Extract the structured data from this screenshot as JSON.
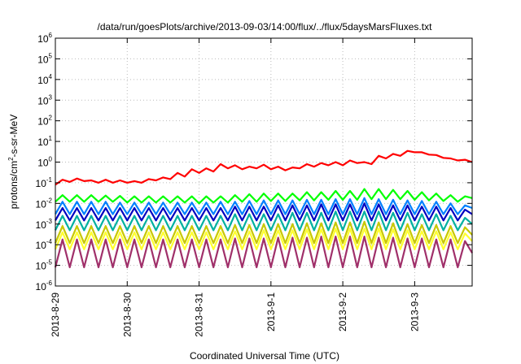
{
  "chart_data": {
    "type": "line",
    "title": "/data/run/goesPlots/archive/2013-09-03/14:00/flux/../flux/5daysMarsFluxes.txt",
    "xlabel": "Coordinated Universal Time (UTC)",
    "ylabel": {
      "main": "protons/cm",
      "sup": "2",
      "rest": "-s-sr-MeV"
    },
    "yscale": "log",
    "ylim": [
      1e-06,
      1000000.0
    ],
    "xlim": [
      0,
      5.8
    ],
    "grid": true,
    "x_ticks": [
      {
        "x": 0,
        "label": "2013-8-29"
      },
      {
        "x": 1,
        "label": "2013-8-30"
      },
      {
        "x": 2,
        "label": "2013-8-31"
      },
      {
        "x": 3,
        "label": "2013-9-1"
      },
      {
        "x": 4,
        "label": "2013-9-2"
      },
      {
        "x": 5,
        "label": "2013-9-3"
      }
    ],
    "y_ticks": [
      {
        "exp": -6,
        "label": "10",
        "sup": "-6"
      },
      {
        "exp": -5,
        "label": "10",
        "sup": "-5"
      },
      {
        "exp": -4,
        "label": "10",
        "sup": "-4"
      },
      {
        "exp": -3,
        "label": "10",
        "sup": "-3"
      },
      {
        "exp": -2,
        "label": "10",
        "sup": "-2"
      },
      {
        "exp": -1,
        "label": "10",
        "sup": "-1"
      },
      {
        "exp": 0,
        "label": "10",
        "sup": "0"
      },
      {
        "exp": 1,
        "label": "10",
        "sup": "1"
      },
      {
        "exp": 2,
        "label": "10",
        "sup": "2"
      },
      {
        "exp": 3,
        "label": "10",
        "sup": "3"
      },
      {
        "exp": 4,
        "label": "10",
        "sup": "4"
      },
      {
        "exp": 5,
        "label": "10",
        "sup": "5"
      },
      {
        "exp": 6,
        "label": "10",
        "sup": "6"
      }
    ],
    "series": [
      {
        "color": "#ff0000",
        "x": [
          0,
          0.1,
          0.2,
          0.3,
          0.4,
          0.5,
          0.6,
          0.7,
          0.8,
          0.9,
          1.0,
          1.1,
          1.2,
          1.3,
          1.4,
          1.5,
          1.6,
          1.7,
          1.8,
          1.9,
          2.0,
          2.1,
          2.2,
          2.3,
          2.4,
          2.5,
          2.6,
          2.7,
          2.8,
          2.9,
          3.0,
          3.1,
          3.2,
          3.3,
          3.4,
          3.5,
          3.6,
          3.7,
          3.8,
          3.9,
          4.0,
          4.1,
          4.2,
          4.3,
          4.4,
          4.5,
          4.6,
          4.7,
          4.8,
          4.9,
          5.0,
          5.1,
          5.2,
          5.3,
          5.4,
          5.5,
          5.6,
          5.7,
          5.8
        ],
        "y": [
          0.08,
          0.14,
          0.11,
          0.16,
          0.12,
          0.13,
          0.1,
          0.14,
          0.1,
          0.13,
          0.1,
          0.12,
          0.1,
          0.15,
          0.13,
          0.18,
          0.15,
          0.3,
          0.2,
          0.45,
          0.3,
          0.5,
          0.35,
          0.8,
          0.5,
          0.7,
          0.45,
          0.6,
          0.5,
          0.75,
          0.45,
          0.6,
          0.4,
          0.55,
          0.5,
          0.8,
          0.6,
          0.9,
          0.7,
          1.0,
          0.7,
          1.2,
          0.9,
          1.0,
          0.8,
          2.0,
          1.5,
          2.5,
          2.0,
          3.5,
          3.0,
          3.0,
          2.3,
          2.2,
          1.6,
          1.5,
          1.2,
          1.3,
          1.0
        ]
      },
      {
        "color": "#00ff00",
        "x": [
          0,
          0.1,
          0.2,
          0.3,
          0.4,
          0.5,
          0.6,
          0.7,
          0.8,
          0.9,
          1.0,
          1.1,
          1.2,
          1.3,
          1.4,
          1.5,
          1.6,
          1.7,
          1.8,
          1.9,
          2.0,
          2.1,
          2.2,
          2.3,
          2.4,
          2.5,
          2.6,
          2.7,
          2.8,
          2.9,
          3.0,
          3.1,
          3.2,
          3.3,
          3.4,
          3.5,
          3.6,
          3.7,
          3.8,
          3.9,
          4.0,
          4.1,
          4.2,
          4.3,
          4.4,
          4.5,
          4.6,
          4.7,
          4.8,
          4.9,
          5.0,
          5.1,
          5.2,
          5.3,
          5.4,
          5.5,
          5.6,
          5.7,
          5.8
        ],
        "y": [
          0.012,
          0.025,
          0.012,
          0.025,
          0.012,
          0.025,
          0.012,
          0.024,
          0.012,
          0.023,
          0.011,
          0.022,
          0.011,
          0.022,
          0.011,
          0.022,
          0.011,
          0.022,
          0.011,
          0.022,
          0.01,
          0.022,
          0.011,
          0.022,
          0.011,
          0.025,
          0.012,
          0.028,
          0.012,
          0.03,
          0.013,
          0.03,
          0.013,
          0.03,
          0.014,
          0.035,
          0.014,
          0.035,
          0.015,
          0.04,
          0.015,
          0.04,
          0.015,
          0.05,
          0.016,
          0.05,
          0.016,
          0.045,
          0.016,
          0.04,
          0.015,
          0.035,
          0.014,
          0.03,
          0.013,
          0.025,
          0.012,
          0.022,
          0.018
        ]
      },
      {
        "color": "#0080ff",
        "x": [
          0,
          0.1,
          0.2,
          0.3,
          0.4,
          0.5,
          0.6,
          0.7,
          0.8,
          0.9,
          1.0,
          1.1,
          1.2,
          1.3,
          1.4,
          1.5,
          1.6,
          1.7,
          1.8,
          1.9,
          2.0,
          2.1,
          2.2,
          2.3,
          2.4,
          2.5,
          2.6,
          2.7,
          2.8,
          2.9,
          3.0,
          3.1,
          3.2,
          3.3,
          3.4,
          3.5,
          3.6,
          3.7,
          3.8,
          3.9,
          4.0,
          4.1,
          4.2,
          4.3,
          4.4,
          4.5,
          4.6,
          4.7,
          4.8,
          4.9,
          5.0,
          5.1,
          5.2,
          5.3,
          5.4,
          5.5,
          5.6,
          5.7,
          5.8
        ],
        "y": [
          0.003,
          0.012,
          0.003,
          0.012,
          0.003,
          0.012,
          0.003,
          0.012,
          0.003,
          0.011,
          0.003,
          0.011,
          0.003,
          0.011,
          0.003,
          0.011,
          0.003,
          0.011,
          0.003,
          0.011,
          0.003,
          0.011,
          0.003,
          0.012,
          0.003,
          0.012,
          0.003,
          0.013,
          0.003,
          0.014,
          0.003,
          0.014,
          0.003,
          0.014,
          0.003,
          0.015,
          0.003,
          0.015,
          0.003,
          0.016,
          0.003,
          0.016,
          0.003,
          0.018,
          0.003,
          0.016,
          0.003,
          0.015,
          0.003,
          0.014,
          0.003,
          0.013,
          0.003,
          0.012,
          0.003,
          0.01,
          0.003,
          0.008,
          0.006
        ]
      },
      {
        "color": "#0000c0",
        "x": [
          0,
          0.1,
          0.2,
          0.3,
          0.4,
          0.5,
          0.6,
          0.7,
          0.8,
          0.9,
          1.0,
          1.1,
          1.2,
          1.3,
          1.4,
          1.5,
          1.6,
          1.7,
          1.8,
          1.9,
          2.0,
          2.1,
          2.2,
          2.3,
          2.4,
          2.5,
          2.6,
          2.7,
          2.8,
          2.9,
          3.0,
          3.1,
          3.2,
          3.3,
          3.4,
          3.5,
          3.6,
          3.7,
          3.8,
          3.9,
          4.0,
          4.1,
          4.2,
          4.3,
          4.4,
          4.5,
          4.6,
          4.7,
          4.8,
          4.9,
          5.0,
          5.1,
          5.2,
          5.3,
          5.4,
          5.5,
          5.6,
          5.7,
          5.8
        ],
        "y": [
          0.0015,
          0.006,
          0.0015,
          0.006,
          0.0015,
          0.006,
          0.0015,
          0.006,
          0.0015,
          0.006,
          0.0015,
          0.006,
          0.0015,
          0.006,
          0.0015,
          0.006,
          0.0015,
          0.006,
          0.0015,
          0.006,
          0.0015,
          0.006,
          0.0015,
          0.006,
          0.0015,
          0.007,
          0.0015,
          0.007,
          0.0015,
          0.007,
          0.0015,
          0.008,
          0.0015,
          0.008,
          0.0015,
          0.008,
          0.0015,
          0.009,
          0.0015,
          0.009,
          0.0015,
          0.009,
          0.0015,
          0.01,
          0.0015,
          0.009,
          0.0015,
          0.008,
          0.0015,
          0.008,
          0.0015,
          0.007,
          0.0015,
          0.007,
          0.0015,
          0.006,
          0.0015,
          0.005,
          0.003
        ]
      },
      {
        "color": "#00b0a0",
        "x": [
          0,
          0.1,
          0.2,
          0.3,
          0.4,
          0.5,
          0.6,
          0.7,
          0.8,
          0.9,
          1.0,
          1.1,
          1.2,
          1.3,
          1.4,
          1.5,
          1.6,
          1.7,
          1.8,
          1.9,
          2.0,
          2.1,
          2.2,
          2.3,
          2.4,
          2.5,
          2.6,
          2.7,
          2.8,
          2.9,
          3.0,
          3.1,
          3.2,
          3.3,
          3.4,
          3.5,
          3.6,
          3.7,
          3.8,
          3.9,
          4.0,
          4.1,
          4.2,
          4.3,
          4.4,
          4.5,
          4.6,
          4.7,
          4.8,
          4.9,
          5.0,
          5.1,
          5.2,
          5.3,
          5.4,
          5.5,
          5.6,
          5.7,
          5.8
        ],
        "y": [
          0.0005,
          0.0025,
          0.0005,
          0.0025,
          0.0005,
          0.0025,
          0.0005,
          0.0025,
          0.0005,
          0.0025,
          0.0005,
          0.0025,
          0.0005,
          0.0025,
          0.0005,
          0.0025,
          0.0005,
          0.0025,
          0.0005,
          0.0025,
          0.0005,
          0.0025,
          0.0005,
          0.0025,
          0.0005,
          0.003,
          0.0005,
          0.003,
          0.0005,
          0.003,
          0.0005,
          0.003,
          0.0005,
          0.0035,
          0.0005,
          0.0035,
          0.0005,
          0.0035,
          0.0005,
          0.004,
          0.0005,
          0.004,
          0.0005,
          0.004,
          0.0005,
          0.004,
          0.0005,
          0.0035,
          0.0005,
          0.0035,
          0.0005,
          0.003,
          0.0005,
          0.003,
          0.0005,
          0.0025,
          0.0005,
          0.002,
          0.001
        ]
      },
      {
        "color": "#c8c800",
        "x": [
          0,
          0.1,
          0.2,
          0.3,
          0.4,
          0.5,
          0.6,
          0.7,
          0.8,
          0.9,
          1.0,
          1.1,
          1.2,
          1.3,
          1.4,
          1.5,
          1.6,
          1.7,
          1.8,
          1.9,
          2.0,
          2.1,
          2.2,
          2.3,
          2.4,
          2.5,
          2.6,
          2.7,
          2.8,
          2.9,
          3.0,
          3.1,
          3.2,
          3.3,
          3.4,
          3.5,
          3.6,
          3.7,
          3.8,
          3.9,
          4.0,
          4.1,
          4.2,
          4.3,
          4.4,
          4.5,
          4.6,
          4.7,
          4.8,
          4.9,
          5.0,
          5.1,
          5.2,
          5.3,
          5.4,
          5.5,
          5.6,
          5.7,
          5.8
        ],
        "y": [
          0.00012,
          0.0008,
          0.00012,
          0.0008,
          0.00012,
          0.0008,
          0.00012,
          0.0008,
          0.00012,
          0.0008,
          0.00012,
          0.0008,
          0.00012,
          0.0008,
          0.00012,
          0.0008,
          0.00012,
          0.0008,
          0.00012,
          0.0008,
          0.00012,
          0.0008,
          0.00012,
          0.0008,
          0.00012,
          0.0009,
          0.00012,
          0.0009,
          0.00012,
          0.001,
          0.00012,
          0.001,
          0.00012,
          0.001,
          0.00012,
          0.0011,
          0.00012,
          0.0011,
          0.00012,
          0.0012,
          0.00012,
          0.0012,
          0.00012,
          0.0013,
          0.00012,
          0.0012,
          0.00012,
          0.0011,
          0.00012,
          0.001,
          0.00012,
          0.0009,
          0.00012,
          0.0009,
          0.00012,
          0.0008,
          0.00012,
          0.0007,
          0.0003
        ]
      },
      {
        "color": "#ffff30",
        "x": [
          0,
          0.1,
          0.2,
          0.3,
          0.4,
          0.5,
          0.6,
          0.7,
          0.8,
          0.9,
          1.0,
          1.1,
          1.2,
          1.3,
          1.4,
          1.5,
          1.6,
          1.7,
          1.8,
          1.9,
          2.0,
          2.1,
          2.2,
          2.3,
          2.4,
          2.5,
          2.6,
          2.7,
          2.8,
          2.9,
          3.0,
          3.1,
          3.2,
          3.3,
          3.4,
          3.5,
          3.6,
          3.7,
          3.8,
          3.9,
          4.0,
          4.1,
          4.2,
          4.3,
          4.4,
          4.5,
          4.6,
          4.7,
          4.8,
          4.9,
          5.0,
          5.1,
          5.2,
          5.3,
          5.4,
          5.5,
          5.6,
          5.7,
          5.8
        ],
        "y": [
          6e-05,
          0.0004,
          6e-05,
          0.0004,
          6e-05,
          0.0004,
          6e-05,
          0.0004,
          6e-05,
          0.0004,
          6e-05,
          0.0004,
          6e-05,
          0.0004,
          6e-05,
          0.0004,
          6e-05,
          0.0004,
          6e-05,
          0.0004,
          6e-05,
          0.0004,
          6e-05,
          0.0004,
          6e-05,
          0.00045,
          6e-05,
          0.00045,
          6e-05,
          0.0005,
          6e-05,
          0.0005,
          6e-05,
          0.0005,
          6e-05,
          0.00055,
          6e-05,
          0.00055,
          6e-05,
          0.0006,
          6e-05,
          0.0006,
          6e-05,
          0.0006,
          6e-05,
          0.0006,
          6e-05,
          0.00055,
          6e-05,
          0.0005,
          6e-05,
          0.00045,
          6e-05,
          0.00045,
          6e-05,
          0.0004,
          6e-05,
          0.00035,
          0.00015
        ]
      },
      {
        "color": "#a0306a",
        "x": [
          0,
          0.1,
          0.2,
          0.3,
          0.4,
          0.5,
          0.6,
          0.7,
          0.8,
          0.9,
          1.0,
          1.1,
          1.2,
          1.3,
          1.4,
          1.5,
          1.6,
          1.7,
          1.8,
          1.9,
          2.0,
          2.1,
          2.2,
          2.3,
          2.4,
          2.5,
          2.6,
          2.7,
          2.8,
          2.9,
          3.0,
          3.1,
          3.2,
          3.3,
          3.4,
          3.5,
          3.6,
          3.7,
          3.8,
          3.9,
          4.0,
          4.1,
          4.2,
          4.3,
          4.4,
          4.5,
          4.6,
          4.7,
          4.8,
          4.9,
          5.0,
          5.1,
          5.2,
          5.3,
          5.4,
          5.5,
          5.6,
          5.7,
          5.8
        ],
        "y": [
          8e-06,
          0.00018,
          8e-06,
          0.00018,
          8e-06,
          0.00018,
          8e-06,
          0.00018,
          8e-06,
          0.00018,
          8e-06,
          0.00018,
          8e-06,
          0.00018,
          8e-06,
          0.00018,
          8e-06,
          0.00018,
          8e-06,
          0.00018,
          8e-06,
          0.00018,
          8e-06,
          0.00018,
          8e-06,
          0.0002,
          8e-06,
          0.0002,
          8e-06,
          0.0002,
          8e-06,
          0.00022,
          8e-06,
          0.00022,
          8e-06,
          0.00022,
          8e-06,
          0.00025,
          8e-06,
          0.00025,
          8e-06,
          0.00025,
          8e-06,
          0.00025,
          8e-06,
          0.00022,
          8e-06,
          0.00022,
          8e-06,
          0.0002,
          8e-06,
          0.0002,
          8e-06,
          0.00018,
          8e-06,
          0.00018,
          8e-06,
          0.00015,
          4e-05
        ]
      }
    ]
  }
}
